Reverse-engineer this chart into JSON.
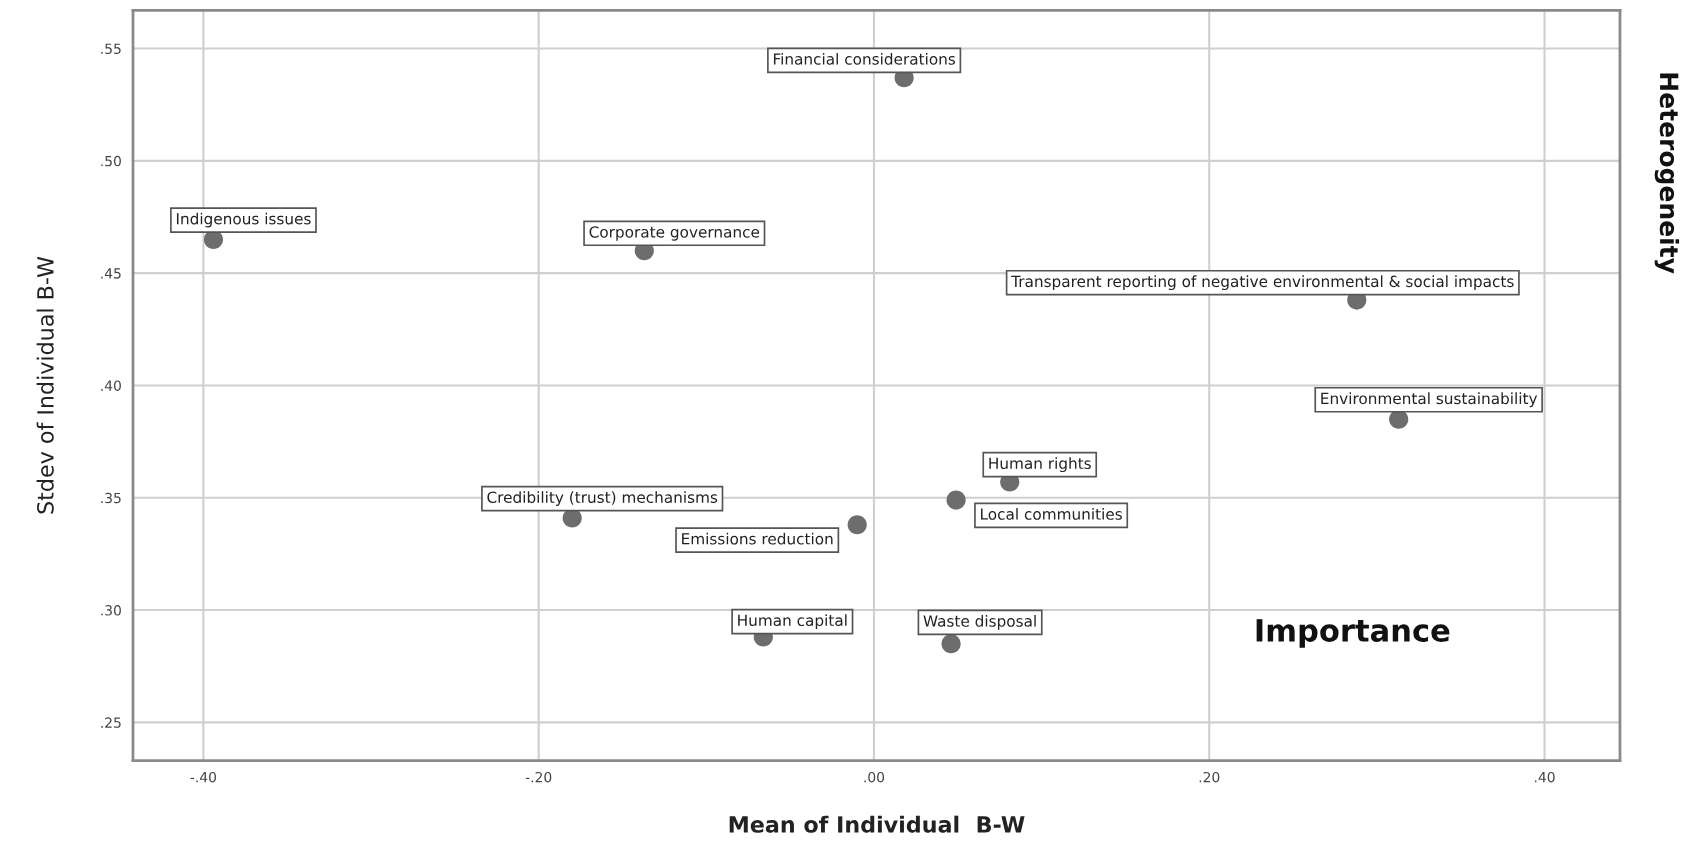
{
  "chart_data": {
    "type": "scatter",
    "xlabel": "Mean of Individual  B-W",
    "ylabel": "Stdev of Individual B-W",
    "x": [
      -0.394,
      -0.137,
      0.018,
      0.288,
      0.313,
      -0.18,
      -0.066,
      -0.01,
      0.081,
      0.049,
      0.046
    ],
    "series": [
      {
        "color": "#6d6d6d",
        "values": [
          0.465,
          0.46,
          0.537,
          0.438,
          0.385,
          0.341,
          0.288,
          0.338,
          0.357,
          0.349,
          0.285
        ]
      }
    ],
    "marker": "circle",
    "grid": true,
    "xlim": [
      -0.442,
      0.445
    ],
    "ylim": [
      0.233,
      0.567
    ],
    "xticks": [
      {
        "value": -0.4,
        "label": "-.40"
      },
      {
        "value": -0.2,
        "label": "-.20"
      },
      {
        "value": 0.0,
        "label": ".00"
      },
      {
        "value": 0.2,
        "label": ".20"
      },
      {
        "value": 0.4,
        "label": ".40"
      }
    ],
    "yticks": [
      {
        "value": 0.25,
        "label": ".25"
      },
      {
        "value": 0.3,
        "label": ".30"
      },
      {
        "value": 0.35,
        "label": ".35"
      },
      {
        "value": 0.4,
        "label": ".40"
      },
      {
        "value": 0.45,
        "label": ".45"
      },
      {
        "value": 0.5,
        "label": ".50"
      },
      {
        "value": 0.55,
        "label": ".55"
      }
    ],
    "annotations": [
      {
        "text": "Indigenous issues",
        "x": -0.394,
        "y": 0.465
      },
      {
        "text": "Corporate governance",
        "x": -0.137,
        "y": 0.46
      },
      {
        "text": "Financial considerations",
        "x": 0.018,
        "y": 0.537
      },
      {
        "text": "Transparent reporting of negative environmental & social impacts",
        "x": 0.288,
        "y": 0.438
      },
      {
        "text": "Environmental sustainability",
        "x": 0.313,
        "y": 0.385
      },
      {
        "text": "Credibility (trust) mechanisms",
        "x": -0.18,
        "y": 0.341
      },
      {
        "text": "Human capital",
        "x": -0.066,
        "y": 0.288
      },
      {
        "text": "Emissions reduction",
        "x": -0.01,
        "y": 0.338
      },
      {
        "text": "Human rights",
        "x": 0.081,
        "y": 0.357
      },
      {
        "text": "Local communities",
        "x": 0.049,
        "y": 0.349
      },
      {
        "text": "Waste disposal",
        "x": 0.046,
        "y": 0.285
      },
      "Importance",
      "Heterogeneity"
    ]
  }
}
